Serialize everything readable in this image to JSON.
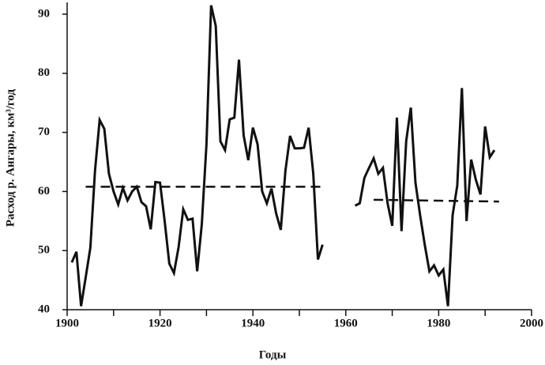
{
  "chart_data": {
    "type": "line",
    "xlabel": "Годы",
    "ylabel": "Расход р. Ангары, км³/год",
    "x": [
      1901,
      1902,
      1903,
      1904,
      1905,
      1906,
      1907,
      1908,
      1909,
      1910,
      1911,
      1912,
      1913,
      1914,
      1915,
      1916,
      1917,
      1918,
      1919,
      1920,
      1921,
      1922,
      1923,
      1924,
      1925,
      1926,
      1927,
      1928,
      1929,
      1930,
      1931,
      1932,
      1933,
      1934,
      1935,
      1936,
      1937,
      1938,
      1939,
      1940,
      1941,
      1942,
      1943,
      1944,
      1945,
      1946,
      1947,
      1948,
      1949,
      1950,
      1951,
      1952,
      1953,
      1954,
      1955,
      1956,
      1957,
      1958,
      1959,
      1960,
      1961,
      1962,
      1963,
      1964,
      1965,
      1966,
      1967,
      1968,
      1969,
      1970,
      1971,
      1972,
      1973,
      1974,
      1975,
      1976,
      1977,
      1978,
      1979,
      1980,
      1981,
      1982,
      1983,
      1984,
      1985,
      1986,
      1987,
      1988,
      1989,
      1990,
      1991,
      1992
    ],
    "series": [
      {
        "color": "#111111",
        "values": [
          48,
          49.8,
          40.6,
          45.5,
          50.5,
          63.5,
          72.1,
          70.6,
          63,
          60,
          57.8,
          60.6,
          58.5,
          60,
          60.8,
          58.2,
          57.5,
          53.6,
          61.6,
          61.5,
          55,
          47.8,
          46.2,
          50.6,
          57,
          55.2,
          55.4,
          46.5,
          54.5,
          68,
          91.5,
          88,
          68.5,
          67,
          72.2,
          72.5,
          82.3,
          69.5,
          65.3,
          70.8,
          68,
          60,
          58,
          60.5,
          56.3,
          53.5,
          63.5,
          69.4,
          67.3,
          67.3,
          67.4,
          70.8,
          63,
          48.5,
          51,
          null,
          null,
          null,
          null,
          null,
          null,
          57.6,
          58,
          62.3,
          64,
          65.6,
          63,
          64,
          58,
          54.2,
          72.5,
          53.3,
          68.5,
          74.2,
          61.5,
          56,
          51,
          46.5,
          47.5,
          45.8,
          46.8,
          40.6,
          56,
          61,
          77.5,
          55,
          65.4,
          62,
          59.5,
          71,
          65.8,
          67
        ]
      }
    ],
    "trend_lines": [
      {
        "x": [
          1904,
          1955
        ],
        "values": [
          60.8,
          60.8
        ]
      },
      {
        "x": [
          1966,
          1993
        ],
        "values": [
          58.6,
          58.3
        ]
      }
    ],
    "trend_dashed": true,
    "xlim": [
      1900,
      2000
    ],
    "xticks": [
      1900,
      1920,
      1940,
      1960,
      1980,
      2000
    ],
    "xminor": [
      1910,
      1930,
      1950,
      1970,
      1990
    ],
    "ylim": [
      40,
      92
    ],
    "yticks": [
      40,
      50,
      60,
      70,
      80,
      90
    ]
  }
}
